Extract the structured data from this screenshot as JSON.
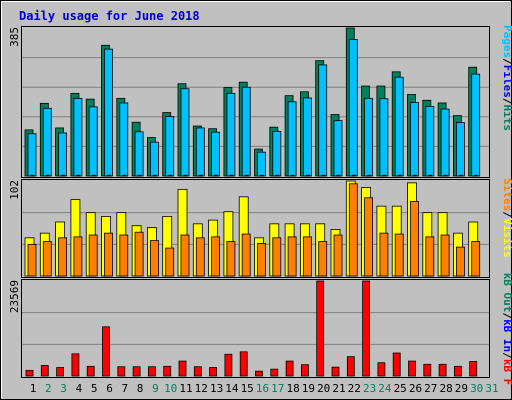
{
  "chart_data": {
    "title": "Daily usage for June 2018",
    "type": "bar",
    "days": [
      "1",
      "2",
      "3",
      "4",
      "5",
      "6",
      "7",
      "8",
      "9",
      "10",
      "11",
      "12",
      "13",
      "14",
      "15",
      "16",
      "17",
      "18",
      "19",
      "20",
      "21",
      "22",
      "23",
      "24",
      "25",
      "26",
      "27",
      "28",
      "29",
      "30",
      "31"
    ],
    "weekend_days": [
      "2",
      "3",
      "9",
      "10",
      "16",
      "17",
      "23",
      "24",
      "30",
      "31"
    ],
    "colors": {
      "hits": "#00805C",
      "files": "#00C0FF",
      "pages": "#0000FF",
      "visits": "#FFFF00",
      "sites": "#FF8000",
      "kbin": "#0000FF",
      "kbout": "#00805C",
      "kbf": "#FF0000",
      "title": "#0000CC",
      "weekend_day": "#00805C",
      "weekday": "#000000",
      "plot_bg": "#C0C0C0",
      "grid": "#808080"
    },
    "panels": {
      "hits": {
        "ymax_label": "385",
        "ymax": 385,
        "legend": [
          {
            "text": "Hits",
            "color": "#00805C"
          },
          {
            "text": "Files",
            "color": "#00C0FF"
          },
          {
            "text": "Pages",
            "color": "#0000FF"
          }
        ],
        "series": [
          {
            "name": "Hits",
            "values": [
              120,
              189,
              125,
              215,
              200,
              340,
              202,
              140,
              100,
              165,
              240,
              130,
              123,
              230,
              244,
              70,
              127,
              209,
              219,
              300,
              160,
              385,
              234,
              234,
              271,
              212,
              197,
              190,
              157,
              283,
              0
            ]
          },
          {
            "name": "Files",
            "values": [
              110,
              176,
              112,
              202,
              180,
              330,
              190,
              115,
              88,
              155,
              227,
              125,
              114,
              215,
              231,
              62,
              116,
              193,
              203,
              289,
              144,
              355,
              202,
              201,
              257,
              191,
              181,
              174,
              139,
              265,
              0
            ]
          },
          {
            "name": "Pages",
            "values": [
              2,
              2,
              2,
              2,
              2,
              2,
              2,
              2,
              2,
              2,
              2,
              2,
              2,
              2,
              2,
              2,
              2,
              2,
              2,
              2,
              2,
              2,
              2,
              2,
              2,
              2,
              2,
              2,
              2,
              2,
              0
            ]
          }
        ]
      },
      "visits": {
        "ymax_label": "102",
        "ymax": 102,
        "legend": [
          {
            "text": "Visits",
            "color": "#FFFF00"
          },
          {
            "text": "Sites",
            "color": "#FF8000"
          }
        ],
        "series": [
          {
            "name": "Visits",
            "values": [
              41,
              46,
              58,
              82,
              68,
              64,
              68,
              54,
              52,
              64,
              93,
              56,
              60,
              69,
              85,
              41,
              56,
              56,
              56,
              56,
              50,
              102,
              95,
              75,
              75,
              100,
              68,
              68,
              46,
              58,
              0
            ]
          },
          {
            "name": "Sites",
            "values": [
              34,
              37,
              41,
              42,
              44,
              46,
              44,
              47,
              38,
              30,
              44,
              41,
              42,
              37,
              45,
              35,
              41,
              42,
              42,
              37,
              44,
              99,
              84,
              46,
              45,
              80,
              42,
              44,
              31,
              37,
              0
            ]
          }
        ]
      },
      "kbytes": {
        "ymax_label": "23569",
        "ymax": 23569,
        "legend": [
          {
            "text": "kB F",
            "color": "#FF0000"
          },
          {
            "text": "kB In",
            "color": "#0000FF"
          },
          {
            "text": "kB Out",
            "color": "#00805C"
          }
        ],
        "series": [
          {
            "name": "kB F",
            "values": [
              1400,
              2600,
              2100,
              5500,
              2400,
              12200,
              2300,
              2300,
              2300,
              2400,
              3700,
              2300,
              2100,
              5400,
              6000,
              1200,
              1700,
              3700,
              2800,
              23569,
              2200,
              4800,
              23569,
              3300,
              5700,
              3700,
              2900,
              2900,
              2400,
              3600,
              0
            ]
          },
          {
            "name": "kB In",
            "values": [
              0,
              0,
              0,
              0,
              0,
              0,
              0,
              0,
              0,
              0,
              0,
              0,
              0,
              0,
              0,
              0,
              0,
              0,
              0,
              0,
              0,
              0,
              0,
              0,
              0,
              0,
              0,
              0,
              0,
              0,
              0
            ]
          },
          {
            "name": "kB Out",
            "values": [
              0,
              0,
              0,
              0,
              0,
              0,
              0,
              0,
              0,
              0,
              0,
              0,
              0,
              0,
              0,
              0,
              0,
              0,
              0,
              0,
              0,
              0,
              0,
              0,
              0,
              0,
              0,
              0,
              0,
              0,
              0
            ]
          }
        ]
      }
    }
  }
}
